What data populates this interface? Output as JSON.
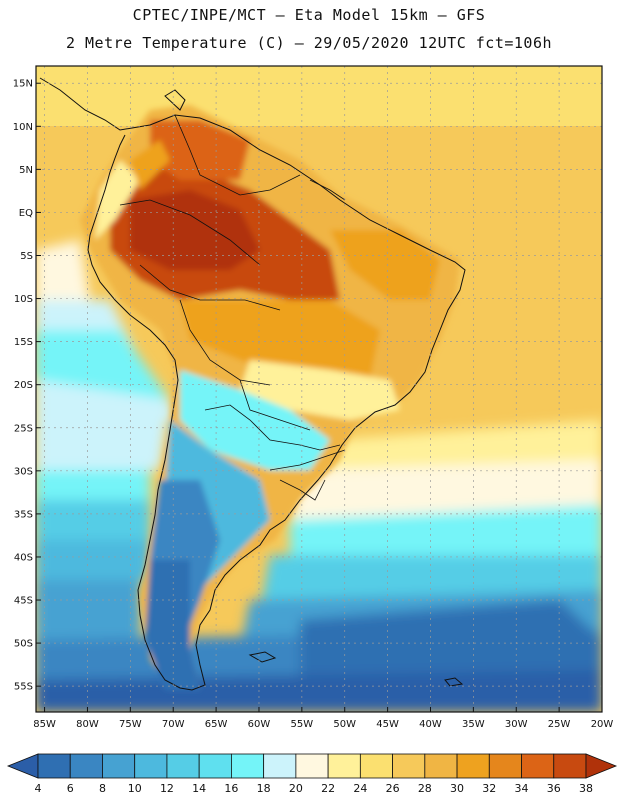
{
  "header": {
    "line1": "CPTEC/INPE/MCT –  Eta Model 15km – GFS",
    "line2": "2 Metre Temperature (C) – 29/05/2020 12UTC fct=106h"
  },
  "axes": {
    "lat_labels": [
      "15N",
      "10N",
      "5N",
      "EQ",
      "5S",
      "10S",
      "15S",
      "20S",
      "25S",
      "30S",
      "35S",
      "40S",
      "45S",
      "50S",
      "55S"
    ],
    "lat_values": [
      15,
      10,
      5,
      0,
      -5,
      -10,
      -15,
      -20,
      -25,
      -30,
      -35,
      -40,
      -45,
      -50,
      -55
    ],
    "lon_labels": [
      "85W",
      "80W",
      "75W",
      "70W",
      "65W",
      "60W",
      "55W",
      "50W",
      "45W",
      "40W",
      "35W",
      "30W",
      "25W",
      "20W"
    ],
    "lon_values": [
      -85,
      -80,
      -75,
      -70,
      -65,
      -60,
      -55,
      -50,
      -45,
      -40,
      -35,
      -30,
      -25,
      -20
    ],
    "lat_range": [
      -58,
      17
    ],
    "lon_range": [
      -86,
      -20
    ]
  },
  "colorbar": {
    "labels": [
      "4",
      "6",
      "8",
      "10",
      "12",
      "14",
      "16",
      "18",
      "20",
      "22",
      "24",
      "26",
      "28",
      "30",
      "32",
      "34",
      "36",
      "38"
    ],
    "colors": [
      "#2b5ea8",
      "#2f6fb2",
      "#3a86c2",
      "#46a2d2",
      "#4db9de",
      "#55cde6",
      "#5fe0ef",
      "#74f4f8",
      "#ccf3fb",
      "#fff8e0",
      "#fff19a",
      "#fbe070",
      "#f6c95a",
      "#f0b544",
      "#eea21f",
      "#e5861c",
      "#dc6416",
      "#c84a10",
      "#b0320a"
    ]
  },
  "chart_data": {
    "type": "heatmap",
    "title": "2 Metre Temperature (C) – 29/05/2020 12UTC fct=106h",
    "variable": "2 Metre Temperature",
    "unit": "C",
    "color_scale_min": 4,
    "color_scale_max": 38,
    "region": "South America",
    "lat_range": [
      -58,
      17
    ],
    "lon_range": [
      -86,
      -20
    ]
  }
}
